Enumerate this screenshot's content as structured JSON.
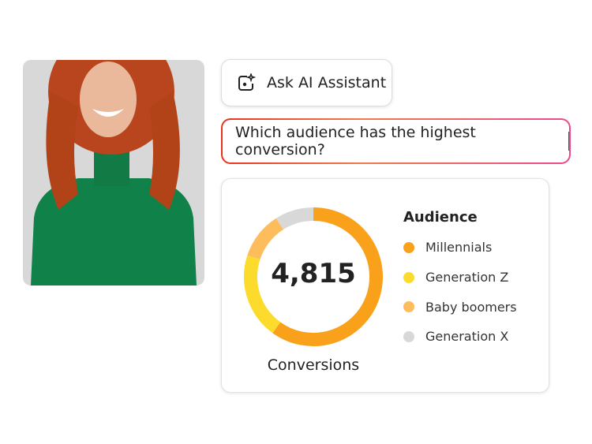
{
  "assistant_button": {
    "label": "Ask AI Assistant",
    "icon": "ai-sparkle-icon"
  },
  "prompt_input": {
    "value": "Which audience has the highest conversion?"
  },
  "card": {
    "total": "4,815",
    "caption": "Conversions",
    "legend_title": "Audience"
  },
  "chart_data": {
    "type": "pie",
    "variant": "donut",
    "center_label": "4,815",
    "caption": "Conversions",
    "legend_title": "Audience",
    "legend_position": "right",
    "categories": [
      "Millennials",
      "Generation Z",
      "Baby boomers",
      "Generation X"
    ],
    "values": [
      60,
      20,
      11,
      9
    ],
    "colors": [
      "#f9a11b",
      "#fcdb2c",
      "#fdbd5c",
      "#d8d8d8"
    ]
  }
}
